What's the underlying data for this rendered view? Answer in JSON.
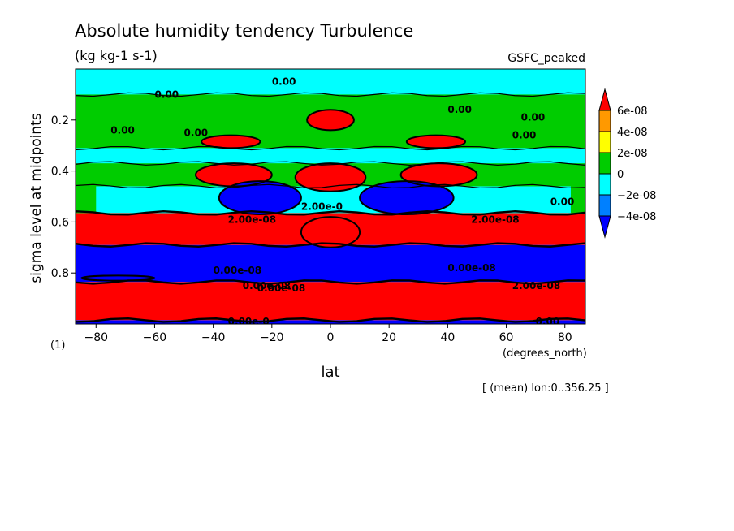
{
  "chart_data": {
    "type": "heatmap",
    "title": "Absolute humidity tendency Turbulence",
    "units": "(kg kg-1 s-1)",
    "dataset": "GSFC_peaked",
    "xlabel": "lat",
    "xunits": "(degrees_north)",
    "ylabel": "sigma level at midpoints",
    "xlim": [
      -87,
      87
    ],
    "ylim": [
      0.0,
      1.0
    ],
    "y_inverted": true,
    "xticks": [
      -80,
      -60,
      -40,
      -20,
      0,
      20,
      40,
      60,
      80
    ],
    "xtick_labels": [
      "−80",
      "−60",
      "−40",
      "−20",
      "0",
      "20",
      "40",
      "60",
      "80"
    ],
    "yticks": [
      0.2,
      0.4,
      0.6,
      0.8
    ],
    "ytick_labels": [
      "0.2",
      "0.4",
      "0.6",
      "0.8"
    ],
    "panel_label": "(1)",
    "subset_note": "[ (mean) lon:0..356.25 ]",
    "colorbar": {
      "levels": [
        "6e-08",
        "4e-08",
        "2e-08",
        "0",
        "−2e-08",
        "−4e-08"
      ],
      "colors": [
        "#ff0000",
        "#ff9900",
        "#ffff00",
        "#00cc00",
        "#00ffff",
        "#0080ff",
        "#0000ff"
      ]
    },
    "fill_regions": [
      {
        "level": "below -4e-08",
        "color": "#0000ff",
        "sigma": [
          0.985,
          1.0
        ],
        "lat": [
          -87,
          87
        ]
      },
      {
        "level": "above 6e-08",
        "color": "#ff0000",
        "sigma": [
          0.835,
          0.985
        ],
        "lat": [
          -87,
          87
        ]
      },
      {
        "level": "below -4e-08",
        "color": "#0000ff",
        "sigma": [
          0.69,
          0.835
        ],
        "lat": [
          -87,
          87
        ]
      },
      {
        "level": "above 6e-08",
        "color": "#ff0000",
        "sigma": [
          0.565,
          0.69
        ],
        "lat": [
          -87,
          87
        ]
      },
      {
        "level": "0 to 2e-08",
        "color": "#00cc00",
        "sigma": [
          0.0,
          0.565
        ],
        "lat": [
          -87,
          87
        ]
      },
      {
        "level": "-2e-08 to 0",
        "color": "#00ffff",
        "sigma": [
          0.46,
          0.565
        ],
        "lat": [
          -80,
          82
        ]
      },
      {
        "level": "-2e-08 to 0",
        "color": "#00ffff",
        "sigma": [
          0.31,
          0.37
        ],
        "lat": [
          -87,
          87
        ]
      },
      {
        "level": "-2e-08 to 0",
        "color": "#00ffff",
        "sigma": [
          0.0,
          0.1
        ],
        "lat": [
          -87,
          87
        ]
      },
      {
        "level": "above 6e-08",
        "color": "#ff0000",
        "sigma": [
          0.37,
          0.46
        ],
        "lat": [
          -46,
          -20
        ]
      },
      {
        "level": "above 6e-08",
        "color": "#ff0000",
        "sigma": [
          0.37,
          0.46
        ],
        "lat": [
          24,
          50
        ]
      },
      {
        "level": "above 6e-08",
        "color": "#ff0000",
        "sigma": [
          0.26,
          0.31
        ],
        "lat": [
          -44,
          -24
        ]
      },
      {
        "level": "above 6e-08",
        "color": "#ff0000",
        "sigma": [
          0.26,
          0.31
        ],
        "lat": [
          26,
          46
        ]
      },
      {
        "level": "above 6e-08",
        "color": "#ff0000",
        "sigma": [
          0.16,
          0.24
        ],
        "lat": [
          -8,
          8
        ]
      },
      {
        "level": "above 6e-08",
        "color": "#ff0000",
        "sigma": [
          0.37,
          0.48
        ],
        "lat": [
          -12,
          12
        ]
      },
      {
        "level": "above 6e-08",
        "color": "#ff0000",
        "sigma": [
          0.58,
          0.7
        ],
        "lat": [
          -10,
          10
        ]
      },
      {
        "level": "below -4e-08",
        "color": "#0000ff",
        "sigma": [
          0.44,
          0.57
        ],
        "lat": [
          -38,
          -10
        ]
      },
      {
        "level": "below -4e-08",
        "color": "#0000ff",
        "sigma": [
          0.44,
          0.57
        ],
        "lat": [
          10,
          42
        ]
      },
      {
        "level": "below -4e-08",
        "color": "#0000ff",
        "sigma": [
          0.81,
          0.83
        ],
        "lat": [
          -85,
          -60
        ]
      }
    ],
    "contour_labels": [
      "0.00",
      "0.00",
      "0.00",
      "0.00",
      "0.00",
      "0.00",
      "0.00",
      "0.00",
      "2.00e-0",
      "2.00e-08",
      "2.00e-08",
      "0.00e-08",
      "0.00e-08",
      "2.00e-08",
      "0.00e-08",
      "0.00e-08",
      "0.00e-0",
      "0.00"
    ]
  }
}
